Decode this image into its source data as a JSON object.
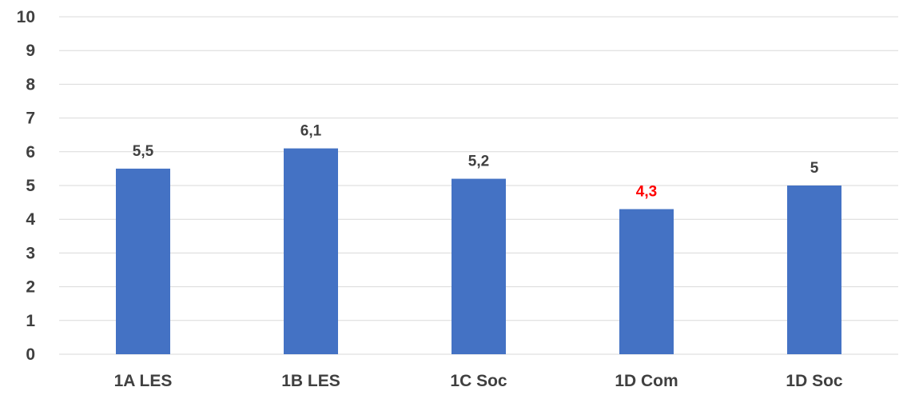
{
  "chart_data": {
    "type": "bar",
    "categories": [
      "1A LES",
      "1B LES",
      "1C Soc",
      "1D Com",
      "1D Soc"
    ],
    "values": [
      5.5,
      6.1,
      5.2,
      4.3,
      5
    ],
    "data_labels": [
      "5,5",
      "6,1",
      "5,2",
      "4,3",
      "5"
    ],
    "label_colors": [
      "#404040",
      "#404040",
      "#404040",
      "#ff0000",
      "#404040"
    ],
    "ylim": [
      0,
      10
    ],
    "yticks": [
      "0",
      "1",
      "2",
      "3",
      "4",
      "5",
      "6",
      "7",
      "8",
      "9",
      "10"
    ],
    "grid": true,
    "title": "",
    "xlabel": "",
    "ylabel": "",
    "colors": {
      "bar": "#4472c4",
      "grid": "#d9d9d9",
      "text": "#404040"
    }
  }
}
